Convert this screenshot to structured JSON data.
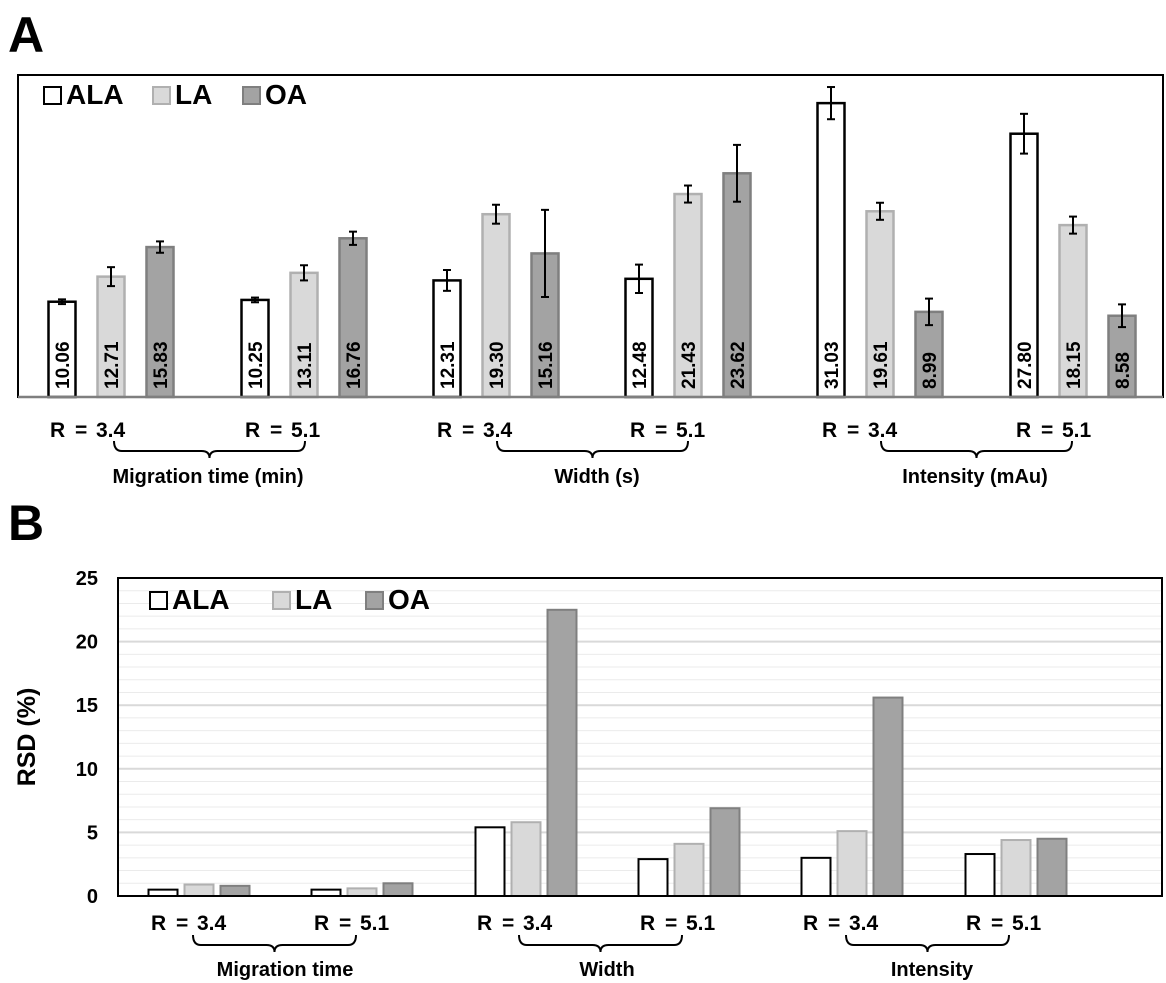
{
  "colors": {
    "ALA": "#ffffff",
    "LA": "#d9d9d9",
    "OA": "#a3a3a3",
    "ALA_stroke": "#000000",
    "LA_stroke": "#b0b0b0",
    "OA_stroke": "#7f7f7f"
  },
  "legend": [
    "ALA",
    "LA",
    "OA"
  ],
  "panels": {
    "A": {
      "letter": "A",
      "condition_labels": [
        [
          "R",
          "=",
          "3.4"
        ],
        [
          "R",
          "=",
          "5.1"
        ],
        [
          "R",
          "=",
          "3.4"
        ],
        [
          "R",
          "=",
          "5.1"
        ],
        [
          "R",
          "=",
          "3.4"
        ],
        [
          "R",
          "=",
          "5.1"
        ]
      ],
      "group_labels": [
        "Migration time (min)",
        "Width (s)",
        "Intensity (mAu)"
      ]
    },
    "B": {
      "letter": "B",
      "ylabel": "RSD (%)",
      "yticks": [
        "0",
        "5",
        "10",
        "15",
        "20",
        "25"
      ],
      "condition_labels": [
        [
          "R",
          "=",
          "3.4"
        ],
        [
          "R",
          "=",
          "5.1"
        ],
        [
          "R",
          "=",
          "3.4"
        ],
        [
          "R",
          "=",
          "5.1"
        ],
        [
          "R",
          "=",
          "3.4"
        ],
        [
          "R",
          "=",
          "5.1"
        ]
      ],
      "group_labels": [
        "Migration time",
        "Width",
        "Intensity"
      ]
    }
  },
  "chart_data": [
    {
      "type": "bar",
      "panel": "A",
      "categories": [
        "R = 3.4",
        "R = 5.1",
        "R = 3.4",
        "R = 5.1",
        "R = 3.4",
        "R = 5.1"
      ],
      "groups": [
        "Migration time (min)",
        "Width (s)",
        "Intensity (mAu)"
      ],
      "series": [
        {
          "name": "ALA",
          "values": [
            10.06,
            10.25,
            12.31,
            12.48,
            31.03,
            27.8
          ],
          "labels": [
            "10.06",
            "10.25",
            "12.31",
            "12.48",
            "31.03",
            "27.80"
          ],
          "errors": [
            0.25,
            0.25,
            1.1,
            1.5,
            1.7,
            2.1
          ]
        },
        {
          "name": "LA",
          "values": [
            12.71,
            13.11,
            19.3,
            21.43,
            19.61,
            18.15
          ],
          "labels": [
            "12.71",
            "13.11",
            "19.30",
            "21.43",
            "19.61",
            "18.15"
          ],
          "errors": [
            1.0,
            0.8,
            1.0,
            0.9,
            0.9,
            0.9
          ]
        },
        {
          "name": "OA",
          "values": [
            15.83,
            16.76,
            15.16,
            23.62,
            8.99,
            8.58
          ],
          "labels": [
            "15.83",
            "16.76",
            "15.16",
            "23.62",
            "8.99",
            "8.58"
          ],
          "errors": [
            0.6,
            0.7,
            4.6,
            3.0,
            1.4,
            1.2
          ]
        }
      ],
      "ylim": [
        0,
        34
      ],
      "axis_shown": false,
      "grid": false,
      "legend_position": "top-left"
    },
    {
      "type": "bar",
      "panel": "B",
      "categories": [
        "R = 3.4",
        "R = 5.1",
        "R = 3.4",
        "R = 5.1",
        "R = 3.4",
        "R = 5.1"
      ],
      "groups": [
        "Migration time",
        "Width",
        "Intensity"
      ],
      "series": [
        {
          "name": "ALA",
          "values": [
            0.5,
            0.5,
            5.4,
            2.9,
            3.0,
            3.3
          ]
        },
        {
          "name": "LA",
          "values": [
            0.9,
            0.6,
            5.8,
            4.1,
            5.1,
            4.4
          ]
        },
        {
          "name": "OA",
          "values": [
            0.8,
            1.0,
            22.5,
            6.9,
            15.6,
            4.5
          ]
        }
      ],
      "ylabel": "RSD (%)",
      "ylim": [
        0,
        25
      ],
      "yticks": [
        0,
        5,
        10,
        15,
        20,
        25
      ],
      "grid": true,
      "legend_position": "top-left"
    }
  ]
}
